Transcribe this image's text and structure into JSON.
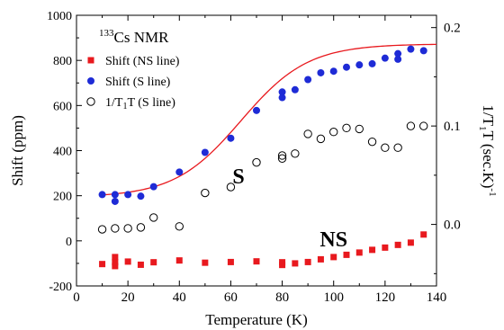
{
  "chart_data": {
    "type": "scatter",
    "xlabel": "Temperature (K)",
    "ylabel": "Shift (ppm)",
    "y2label_parts": [
      "1/T",
      "1",
      "T (sec.K)",
      "-1"
    ],
    "xlim": [
      0,
      140
    ],
    "ylim": [
      -200,
      1000
    ],
    "y2lim": [
      -0.0625,
      0.2125
    ],
    "xticks": [
      0,
      20,
      40,
      60,
      80,
      100,
      120,
      140
    ],
    "yticks": [
      -200,
      0,
      200,
      400,
      600,
      800,
      1000
    ],
    "y2ticks": [
      0.0,
      0.1,
      0.2
    ],
    "x_tick_labels": [
      "0",
      "20",
      "40",
      "60",
      "80",
      "100",
      "120",
      "140"
    ],
    "y_tick_labels": [
      "-200",
      "0",
      "200",
      "400",
      "600",
      "800",
      "1000"
    ],
    "y2_tick_labels": [
      "0.0",
      "0.1",
      "0.2"
    ],
    "grid": false,
    "legend_title_parts": [
      "133",
      "Cs NMR"
    ],
    "legend_position": "top-left",
    "annotations": [
      {
        "text": "S",
        "x": 63,
        "y": 255,
        "color": "#3a4fc8"
      },
      {
        "text": "NS",
        "x": 100,
        "y": -25,
        "color": "#c01818"
      }
    ],
    "series": [
      {
        "name": "Shift (NS line)",
        "marker": "square",
        "color": "#e8191e",
        "axis": "left",
        "points": [
          [
            10,
            -103
          ],
          [
            15,
            -112
          ],
          [
            15,
            -72
          ],
          [
            15,
            -95
          ],
          [
            20,
            -92
          ],
          [
            25,
            -106
          ],
          [
            30,
            -95
          ],
          [
            40,
            -87
          ],
          [
            50,
            -97
          ],
          [
            60,
            -94
          ],
          [
            70,
            -91
          ],
          [
            80,
            -107
          ],
          [
            80,
            -95
          ],
          [
            85,
            -100
          ],
          [
            90,
            -94
          ],
          [
            95,
            -82
          ],
          [
            100,
            -72
          ],
          [
            105,
            -62
          ],
          [
            110,
            -52
          ],
          [
            115,
            -40
          ],
          [
            120,
            -30
          ],
          [
            125,
            -18
          ],
          [
            130,
            -8
          ],
          [
            135,
            28
          ]
        ]
      },
      {
        "name": "Shift (S line)",
        "marker": "filled-circle",
        "color": "#1e2bd6",
        "axis": "left",
        "points": [
          [
            10,
            205
          ],
          [
            15,
            175
          ],
          [
            15,
            205
          ],
          [
            20,
            205
          ],
          [
            25,
            198
          ],
          [
            30,
            240
          ],
          [
            40,
            305
          ],
          [
            50,
            392
          ],
          [
            60,
            455
          ],
          [
            70,
            578
          ],
          [
            80,
            660
          ],
          [
            80,
            635
          ],
          [
            85,
            670
          ],
          [
            90,
            715
          ],
          [
            95,
            745
          ],
          [
            100,
            752
          ],
          [
            105,
            770
          ],
          [
            110,
            780
          ],
          [
            115,
            785
          ],
          [
            120,
            810
          ],
          [
            125,
            830
          ],
          [
            125,
            805
          ],
          [
            130,
            850
          ],
          [
            135,
            843
          ]
        ]
      },
      {
        "name": "1/T1T (S line)",
        "name_parts": [
          "1/T",
          "1",
          "T (S line)"
        ],
        "marker": "open-circle",
        "color": "#000000",
        "axis": "right",
        "points": [
          [
            10,
            -0.005
          ],
          [
            15,
            -0.004
          ],
          [
            20,
            -0.004
          ],
          [
            25,
            -0.003
          ],
          [
            30,
            0.007
          ],
          [
            40,
            -0.002
          ],
          [
            50,
            0.032
          ],
          [
            60,
            0.038
          ],
          [
            70,
            0.063
          ],
          [
            80,
            0.067
          ],
          [
            80,
            0.07
          ],
          [
            85,
            0.072
          ],
          [
            90,
            0.092
          ],
          [
            95,
            0.087
          ],
          [
            100,
            0.094
          ],
          [
            105,
            0.098
          ],
          [
            110,
            0.097
          ],
          [
            115,
            0.084
          ],
          [
            120,
            0.078
          ],
          [
            125,
            0.078
          ],
          [
            130,
            0.1
          ],
          [
            135,
            0.1
          ]
        ]
      },
      {
        "name": "",
        "marker": "line",
        "color": "#e8191e",
        "axis": "left",
        "function": "sigmoid",
        "params": {
          "base": 193,
          "amplitude": 680,
          "center": 64,
          "width": 13
        }
      }
    ]
  }
}
